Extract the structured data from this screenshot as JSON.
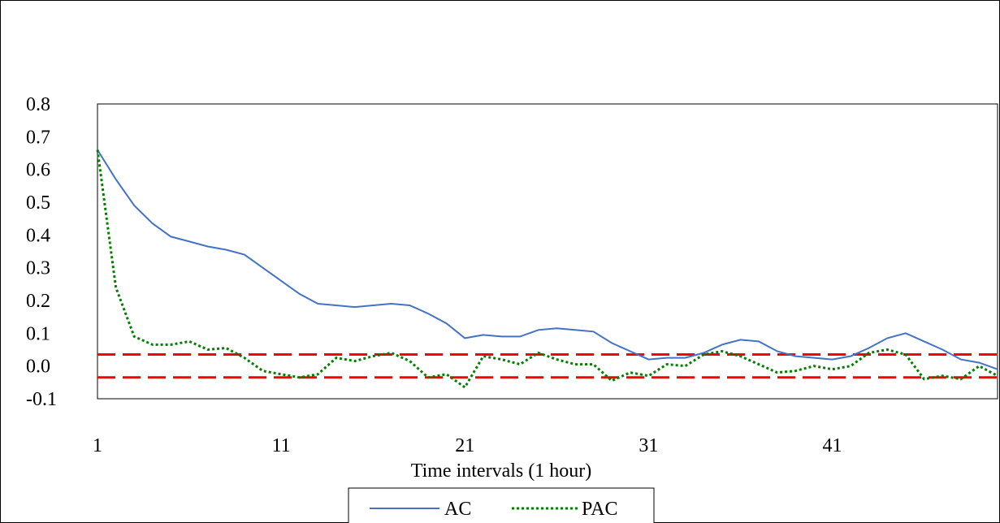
{
  "chart_data": {
    "type": "line",
    "title": "",
    "xlabel": "Time intervals (1 hour)",
    "ylabel": "",
    "xlim": [
      1,
      50
    ],
    "ylim": [
      -0.1,
      0.8
    ],
    "x_ticks": [
      "1",
      "11",
      "21",
      "31",
      "41"
    ],
    "x_tick_values": [
      1,
      11,
      21,
      31,
      41
    ],
    "y_ticks": [
      "0.8",
      "0.7",
      "0.6",
      "0.5",
      "0.4",
      "0.3",
      "0.2",
      "0.1",
      "0.0",
      "-0.1"
    ],
    "y_tick_values": [
      0.8,
      0.7,
      0.6,
      0.5,
      0.4,
      0.3,
      0.2,
      0.1,
      0.0,
      -0.1
    ],
    "grid": false,
    "legend_position": "bottom",
    "x": [
      1,
      2,
      3,
      4,
      5,
      6,
      7,
      8,
      9,
      10,
      11,
      12,
      13,
      14,
      15,
      16,
      17,
      18,
      19,
      20,
      21,
      22,
      23,
      24,
      25,
      26,
      27,
      28,
      29,
      30,
      31,
      32,
      33,
      34,
      35,
      36,
      37,
      38,
      39,
      40,
      41,
      42,
      43,
      44,
      45,
      46,
      47,
      48,
      49,
      50
    ],
    "series": [
      {
        "name": "AC",
        "color": "#4472C4",
        "style": "solid",
        "values": [
          0.66,
          0.57,
          0.49,
          0.435,
          0.395,
          0.38,
          0.365,
          0.355,
          0.34,
          0.3,
          0.26,
          0.22,
          0.19,
          0.185,
          0.18,
          0.185,
          0.19,
          0.185,
          0.16,
          0.13,
          0.085,
          0.095,
          0.09,
          0.09,
          0.11,
          0.115,
          0.11,
          0.105,
          0.07,
          0.045,
          0.02,
          0.025,
          0.025,
          0.04,
          0.065,
          0.08,
          0.075,
          0.045,
          0.03,
          0.025,
          0.02,
          0.03,
          0.055,
          0.085,
          0.1,
          0.075,
          0.05,
          0.02,
          0.01,
          -0.01
        ]
      },
      {
        "name": "PAC",
        "color": "#008000",
        "style": "dotted",
        "values": [
          0.66,
          0.24,
          0.09,
          0.065,
          0.065,
          0.075,
          0.05,
          0.055,
          0.025,
          -0.015,
          -0.025,
          -0.035,
          -0.025,
          0.025,
          0.015,
          0.03,
          0.04,
          0.015,
          -0.035,
          -0.025,
          -0.065,
          0.03,
          0.02,
          0.005,
          0.04,
          0.02,
          0.005,
          0.005,
          -0.045,
          -0.02,
          -0.03,
          0.005,
          0.0,
          0.035,
          0.045,
          0.03,
          0.005,
          -0.02,
          -0.015,
          0.0,
          -0.01,
          0.0,
          0.04,
          0.05,
          0.035,
          -0.04,
          -0.03,
          -0.04,
          0.0,
          -0.03
        ]
      }
    ],
    "reference_lines": [
      {
        "y": 0.035,
        "color": "#FF0000",
        "style": "dashed"
      },
      {
        "y": -0.035,
        "color": "#FF0000",
        "style": "dashed"
      }
    ]
  }
}
